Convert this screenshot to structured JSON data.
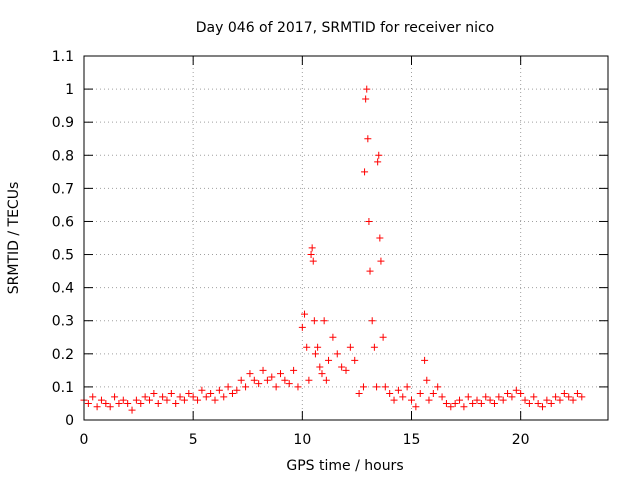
{
  "chart_data": {
    "type": "scatter",
    "title": "Day 046 of 2017, SRMTID for receiver nico",
    "xlabel": "GPS time / hours",
    "ylabel": "SRMTID / TECUs",
    "xlim": [
      0,
      24
    ],
    "ylim": [
      0,
      1.1
    ],
    "xticks": [
      0,
      5,
      10,
      15,
      20
    ],
    "xtick_labels": [
      "0",
      "5",
      "10",
      "15",
      "20"
    ],
    "yticks": [
      0,
      0.1,
      0.2,
      0.3,
      0.4,
      0.5,
      0.6,
      0.7,
      0.8,
      0.9,
      1.0,
      1.1
    ],
    "ytick_labels": [
      "0",
      "0.1",
      "0.2",
      "0.3",
      "0.4",
      "0.5",
      "0.6",
      "0.7",
      "0.8",
      "0.9",
      "1",
      "1.1"
    ],
    "grid": true,
    "marker": "+",
    "color": "#ff0000",
    "series": [
      {
        "name": "SRMTID",
        "x": [
          0.0,
          0.2,
          0.4,
          0.6,
          0.8,
          1.0,
          1.2,
          1.4,
          1.6,
          1.8,
          2.0,
          2.2,
          2.4,
          2.6,
          2.8,
          3.0,
          3.2,
          3.4,
          3.6,
          3.8,
          4.0,
          4.2,
          4.4,
          4.6,
          4.8,
          5.0,
          5.2,
          5.4,
          5.6,
          5.8,
          6.0,
          6.2,
          6.4,
          6.6,
          6.8,
          7.0,
          7.2,
          7.4,
          7.6,
          7.8,
          8.0,
          8.2,
          8.4,
          8.6,
          8.8,
          9.0,
          9.2,
          9.4,
          9.6,
          9.8,
          10.0,
          10.1,
          10.2,
          10.3,
          10.4,
          10.45,
          10.5,
          10.55,
          10.6,
          10.7,
          10.8,
          10.9,
          11.0,
          11.1,
          11.2,
          11.4,
          11.6,
          11.8,
          12.0,
          12.2,
          12.4,
          12.6,
          12.8,
          12.85,
          12.9,
          12.95,
          13.0,
          13.05,
          13.1,
          13.2,
          13.3,
          13.4,
          13.45,
          13.5,
          13.55,
          13.6,
          13.7,
          13.8,
          14.0,
          14.2,
          14.4,
          14.6,
          14.8,
          15.0,
          15.2,
          15.4,
          15.6,
          15.7,
          15.8,
          16.0,
          16.2,
          16.4,
          16.6,
          16.8,
          17.0,
          17.2,
          17.4,
          17.6,
          17.8,
          18.0,
          18.2,
          18.4,
          18.6,
          18.8,
          19.0,
          19.2,
          19.4,
          19.6,
          19.8,
          20.0,
          20.2,
          20.4,
          20.6,
          20.8,
          21.0,
          21.2,
          21.4,
          21.6,
          21.8,
          22.0,
          22.2,
          22.4,
          22.6,
          22.8
        ],
        "y": [
          0.06,
          0.05,
          0.07,
          0.04,
          0.06,
          0.05,
          0.04,
          0.07,
          0.05,
          0.06,
          0.05,
          0.03,
          0.06,
          0.05,
          0.07,
          0.06,
          0.08,
          0.05,
          0.07,
          0.06,
          0.08,
          0.05,
          0.07,
          0.06,
          0.08,
          0.07,
          0.06,
          0.09,
          0.07,
          0.08,
          0.06,
          0.09,
          0.07,
          0.1,
          0.08,
          0.09,
          0.12,
          0.1,
          0.14,
          0.12,
          0.11,
          0.15,
          0.12,
          0.13,
          0.1,
          0.14,
          0.12,
          0.11,
          0.15,
          0.1,
          0.28,
          0.32,
          0.22,
          0.12,
          0.5,
          0.52,
          0.48,
          0.3,
          0.2,
          0.22,
          0.16,
          0.14,
          0.3,
          0.12,
          0.18,
          0.25,
          0.2,
          0.16,
          0.15,
          0.22,
          0.18,
          0.08,
          0.1,
          0.75,
          0.97,
          1.0,
          0.85,
          0.6,
          0.45,
          0.3,
          0.22,
          0.1,
          0.78,
          0.8,
          0.55,
          0.48,
          0.25,
          0.1,
          0.08,
          0.06,
          0.09,
          0.07,
          0.1,
          0.06,
          0.04,
          0.08,
          0.18,
          0.12,
          0.06,
          0.08,
          0.1,
          0.07,
          0.05,
          0.04,
          0.05,
          0.06,
          0.04,
          0.07,
          0.05,
          0.06,
          0.05,
          0.07,
          0.06,
          0.05,
          0.07,
          0.06,
          0.08,
          0.07,
          0.09,
          0.08,
          0.06,
          0.05,
          0.07,
          0.05,
          0.04,
          0.06,
          0.05,
          0.07,
          0.06,
          0.08,
          0.07,
          0.06,
          0.08,
          0.07
        ]
      }
    ]
  }
}
